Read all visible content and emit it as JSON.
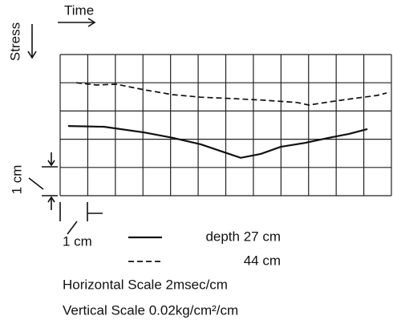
{
  "chart_data": {
    "type": "line",
    "annotations": {
      "time": "Time",
      "stress": "Stress",
      "vertical_scale_bar": "1 cm",
      "horizontal_scale_bar": "1 cm",
      "horizontal_scale": "Horizontal Scale 2msec/cm",
      "vertical_scale": "Vertical Scale 0.02kg/cm²/cm"
    },
    "xlim": [
      0,
      12
    ],
    "ylim": [
      5,
      0
    ],
    "xticks": [
      0,
      1,
      2,
      3,
      4,
      5,
      6,
      7,
      8,
      9,
      10,
      11,
      12
    ],
    "yticks": [
      0,
      1,
      2,
      3,
      4,
      5
    ],
    "grid": true,
    "tick_labels": false,
    "series": [
      {
        "name": "depth 27 cm",
        "color": "#111111",
        "style": "solid",
        "x": [
          0.29,
          1.6,
          3.05,
          4.07,
          5.09,
          5.96,
          6.54,
          7.27,
          7.99,
          8.87,
          9.74,
          10.47,
          11.13
        ],
        "values": [
          2.53,
          2.56,
          2.76,
          2.95,
          3.18,
          3.47,
          3.66,
          3.52,
          3.27,
          3.13,
          2.95,
          2.81,
          2.64
        ]
      },
      {
        "name": "44 cm",
        "color": "#111111",
        "style": "dashed",
        "x": [
          0.58,
          1.31,
          2.03,
          3.05,
          4.07,
          5.09,
          6.25,
          7.41,
          8.58,
          9.01,
          9.74,
          10.61,
          11.48,
          11.83
        ],
        "values": [
          1.0,
          1.08,
          1.05,
          1.25,
          1.42,
          1.51,
          1.56,
          1.62,
          1.7,
          1.79,
          1.68,
          1.56,
          1.45,
          1.36
        ]
      }
    ]
  }
}
